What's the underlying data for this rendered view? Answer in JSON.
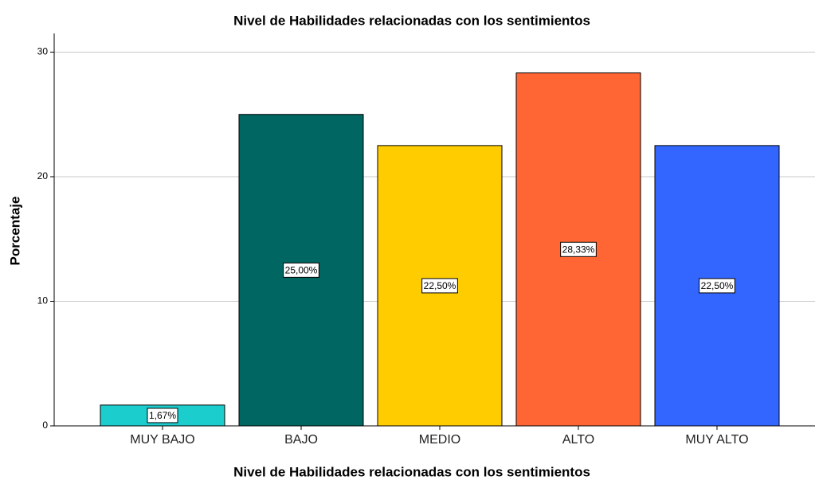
{
  "chart_data": {
    "type": "bar",
    "title": "Nivel de Habilidades relacionadas con los sentimientos",
    "xlabel": "Nivel de Habilidades relacionadas con los sentimientos",
    "ylabel": "Porcentaje",
    "categories": [
      "MUY BAJO",
      "BAJO",
      "MEDIO",
      "ALTO",
      "MUY ALTO"
    ],
    "values": [
      1.67,
      25.0,
      22.5,
      28.33,
      22.5
    ],
    "value_labels": [
      "1,67%",
      "25,00%",
      "22,50%",
      "28,33%",
      "22,50%"
    ],
    "colors": [
      "#1ccdcd",
      "#006661",
      "#ffcc00",
      "#ff6633",
      "#3366ff"
    ],
    "ylim": [
      0,
      31.5
    ],
    "yticks": [
      0,
      10,
      20,
      30
    ],
    "grid": true
  }
}
